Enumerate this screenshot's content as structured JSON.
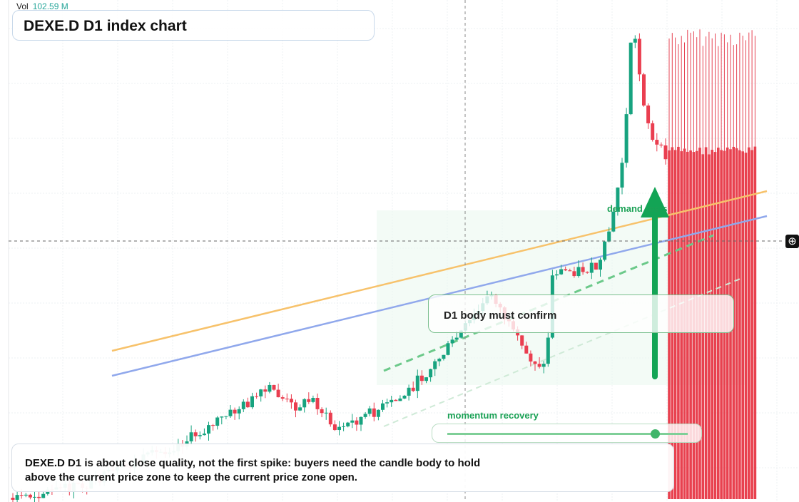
{
  "header": {
    "vol_label": "Vol",
    "vol_value": "102.59 M",
    "title": "DEXE.D D1 index chart"
  },
  "annotations": {
    "zone_label": "demand rests",
    "callout": "D1 body must confirm",
    "momentum": "momentum recovery"
  },
  "note": "DEXE.D D1 is about close quality, not the first spike: buyers need the candle body to hold above the current price zone to keep the current price zone open."
}
